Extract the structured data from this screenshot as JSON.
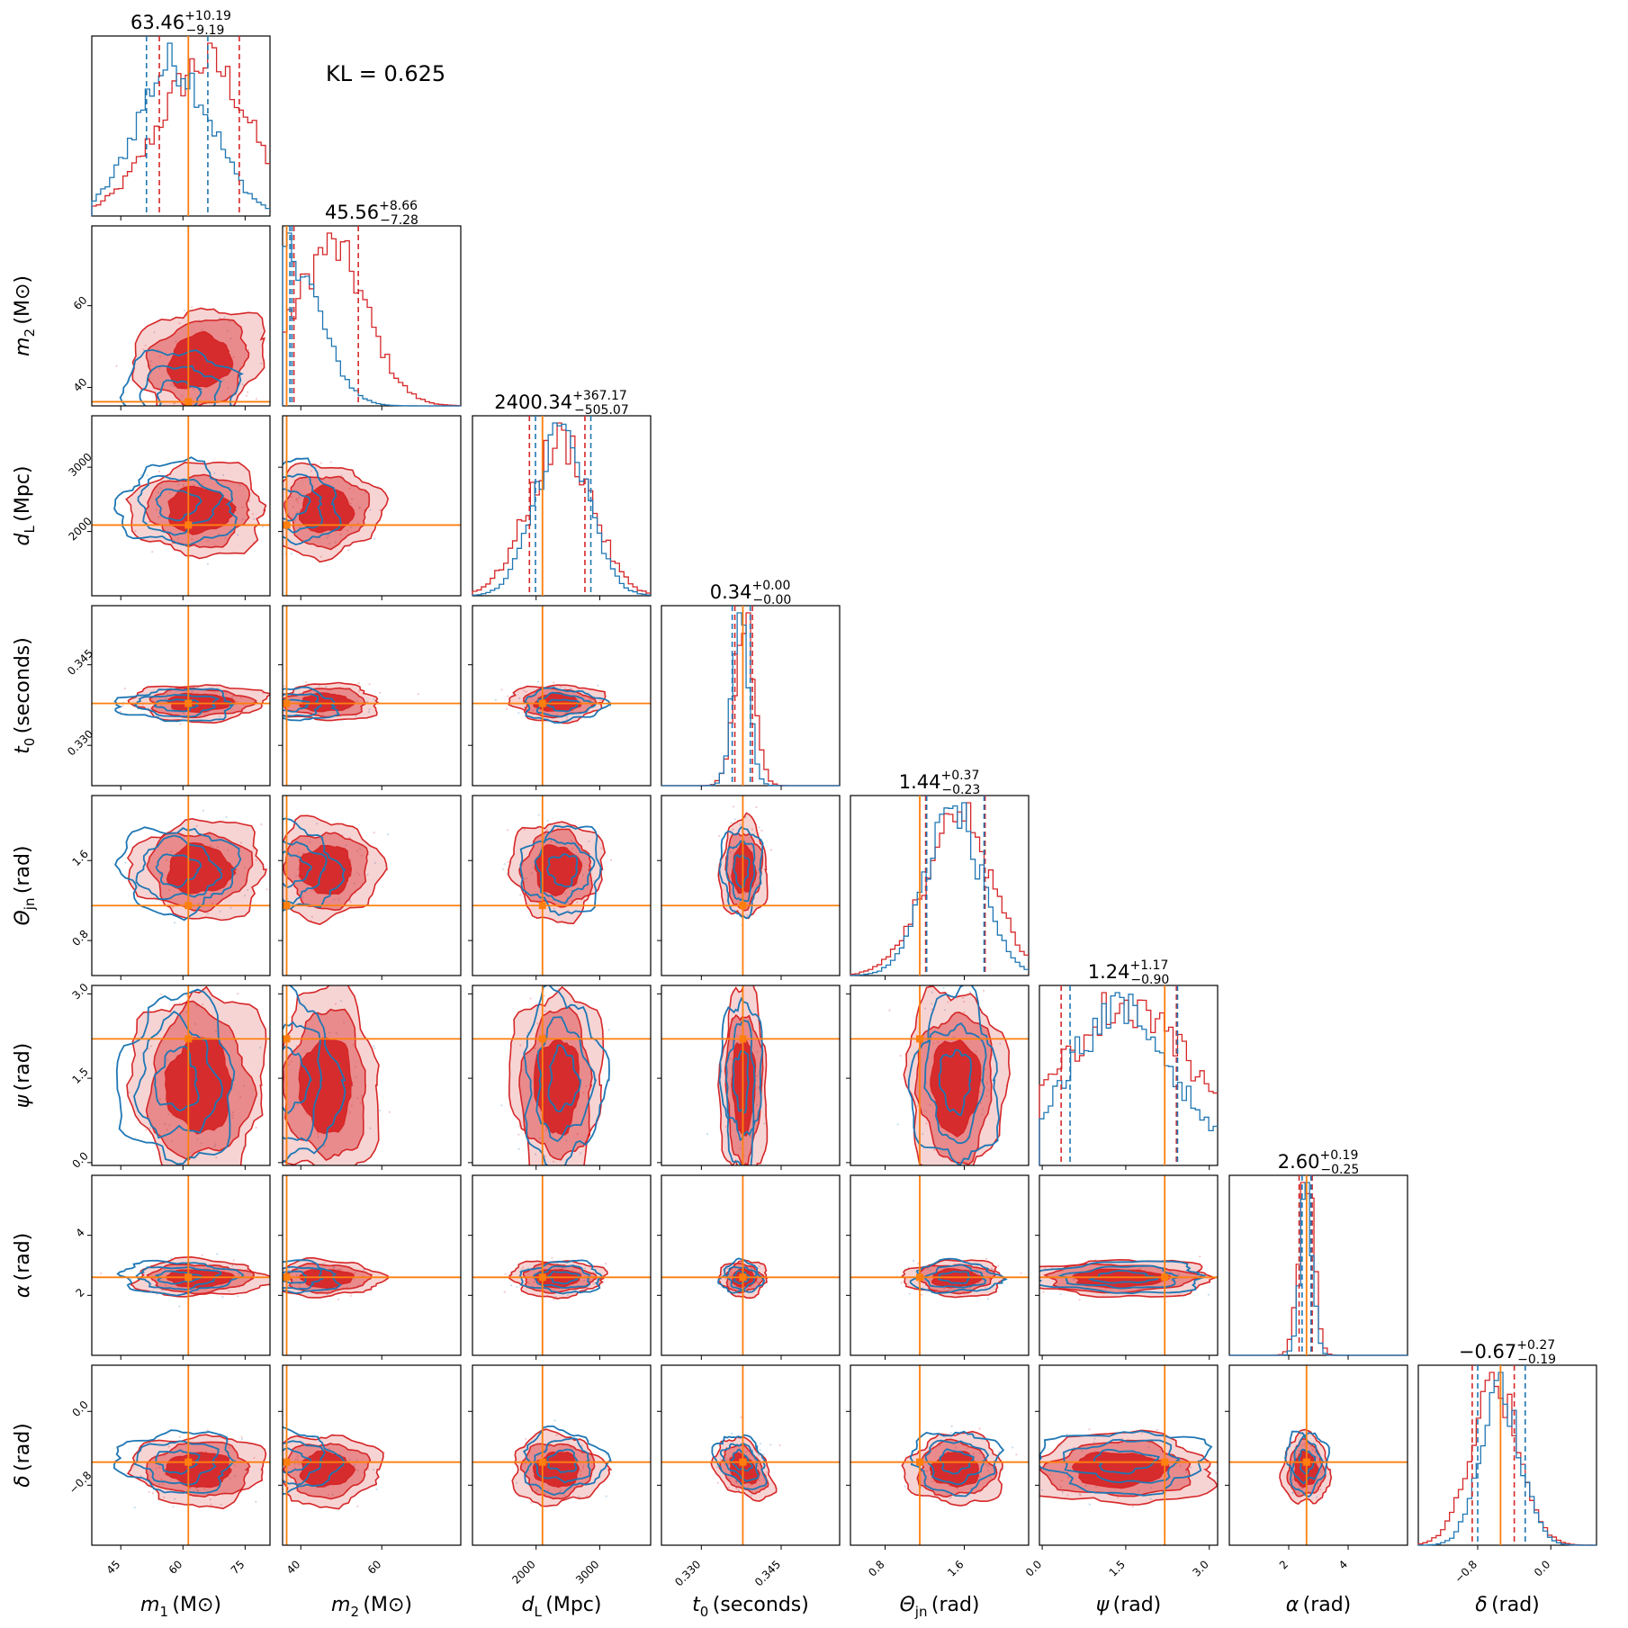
{
  "kl_text": "KL = 0.625",
  "colors": {
    "red": "#d62728",
    "blue": "#1f77b4",
    "truth": "#ff7f0e"
  },
  "chart_data": {
    "type": "corner",
    "params": [
      {
        "key": "m1",
        "sym": "m",
        "sub": "1",
        "unit": "(M⊙)",
        "ticks": [
          45,
          60,
          75
        ],
        "range": [
          38,
          81
        ],
        "truth": 61.3,
        "title_main": "63.46",
        "title_plus": "+10.19",
        "title_minus": "−9.19",
        "red_q": [
          54.3,
          63.46,
          73.6
        ],
        "blue_q": [
          51.2,
          60.8,
          66.0
        ]
      },
      {
        "key": "m2",
        "sym": "m",
        "sub": "2",
        "unit": "(M⊙)",
        "ticks": [
          40,
          60
        ],
        "range": [
          35.5,
          79.5
        ],
        "truth": 36.5,
        "title_main": "45.56",
        "title_plus": "+8.66",
        "title_minus": "−7.28",
        "red_q": [
          38.3,
          45.56,
          54.2
        ],
        "blue_q": [
          37.3,
          47.1,
          37.8
        ]
      },
      {
        "key": "dL",
        "sym": "d",
        "sub": "L",
        "unit": "(Mpc)",
        "ticks": [
          2000,
          3000
        ],
        "range": [
          1000,
          3800
        ],
        "truth": 2100,
        "title_main": "2400.34",
        "title_plus": "+367.17",
        "title_minus": "−505.07",
        "red_q": [
          1895,
          2400.34,
          2767
        ],
        "blue_q": [
          1990,
          2870,
          2860
        ]
      },
      {
        "key": "t0",
        "sym": "t",
        "sub": "0",
        "unit": "(seconds)",
        "ticks": [
          0.33,
          0.345
        ],
        "tick_labels": [
          "0.330",
          "0.345"
        ],
        "range": [
          0.3225,
          0.356
        ],
        "truth": 0.3378,
        "title_main": "0.34",
        "title_plus": "+0.00",
        "title_minus": "−0.00",
        "red_q": [
          0.3363,
          0.3375,
          0.3396
        ],
        "blue_q": [
          0.3358,
          0.3368,
          0.3392
        ]
      },
      {
        "key": "theta",
        "sym": "Θ",
        "sub": "jn",
        "unit": "(rad)",
        "ticks": [
          0.8,
          1.6
        ],
        "range": [
          0.45,
          2.25
        ],
        "truth": 1.15,
        "title_main": "1.44",
        "title_plus": "+0.37",
        "title_minus": "−0.23",
        "red_q": [
          1.21,
          1.44,
          1.81
        ],
        "blue_q": [
          1.22,
          1.45,
          1.8
        ]
      },
      {
        "key": "psi",
        "sym": "ψ",
        "sub": "",
        "unit": "(rad)",
        "ticks": [
          0.0,
          1.5,
          3.0
        ],
        "tick_labels": [
          "0.0",
          "1.5",
          "3.0"
        ],
        "range": [
          -0.05,
          3.15
        ],
        "truth": 2.2,
        "title_main": "1.24",
        "title_plus": "+1.17",
        "title_minus": "−0.90",
        "red_q": [
          0.34,
          1.24,
          2.41
        ],
        "blue_q": [
          0.5,
          2.35,
          2.43
        ]
      },
      {
        "key": "alpha",
        "sym": "α",
        "sub": "",
        "unit": "(rad)",
        "ticks": [
          2,
          4
        ],
        "range": [
          0.0,
          6.0
        ],
        "truth": 2.6,
        "title_main": "2.60",
        "title_plus": "+0.19",
        "title_minus": "−0.25",
        "red_q": [
          2.35,
          2.6,
          2.79
        ],
        "blue_q": [
          2.45,
          2.65,
          2.75
        ]
      },
      {
        "key": "delta",
        "sym": "δ",
        "sub": "",
        "unit": "(rad)",
        "ticks": [
          -0.8,
          0.0
        ],
        "tick_labels": [
          "−0.8",
          "0.0"
        ],
        "range": [
          -1.45,
          0.5
        ],
        "truth": -0.55,
        "title_main": "−0.67",
        "title_plus": "+0.27",
        "title_minus": "−0.19",
        "red_q": [
          -0.86,
          -0.67,
          -0.4
        ],
        "blue_q": [
          -0.8,
          -0.55,
          -0.28
        ]
      }
    ]
  }
}
